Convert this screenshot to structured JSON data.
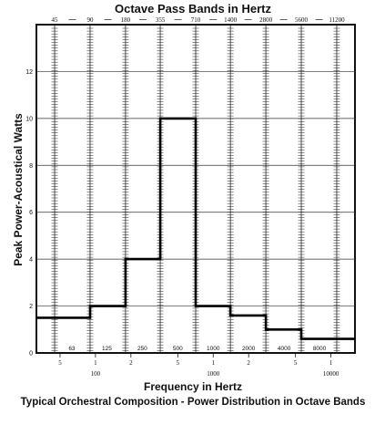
{
  "chart_data": {
    "type": "line",
    "title": "Octave Pass Bands in Hertz",
    "ylabel": "Peak Power-Acoustical Watts",
    "xlabel": "Frequency in Hertz",
    "caption": "Typical Orchestral Composition - Power Distribution in Octave Bands",
    "x_scale": "log",
    "xlim": [
      31.5,
      16000
    ],
    "ylim": [
      0,
      14
    ],
    "grid": true,
    "band_edges": [
      "45",
      "90",
      "180",
      "355",
      "710",
      "1400",
      "2800",
      "5600",
      "11200"
    ],
    "band_edge_values": [
      45,
      90,
      180,
      355,
      710,
      1400,
      2800,
      5600,
      11200
    ],
    "band_centers": [
      "63",
      "125",
      "250",
      "500",
      "1000",
      "2000",
      "4000",
      "8000"
    ],
    "band_center_values": [
      63,
      125,
      250,
      500,
      1000,
      2000,
      4000,
      8000
    ],
    "y_ticks": [
      "0",
      "2",
      "4",
      "6",
      "8",
      "10",
      "12"
    ],
    "y_tick_values": [
      0,
      2,
      4,
      6,
      8,
      10,
      12
    ],
    "x_ticks": [
      {
        "label": "5",
        "value": 50
      },
      {
        "label": "1",
        "value": 100
      },
      {
        "label": "2",
        "value": 200
      },
      {
        "label": "5",
        "value": 500
      },
      {
        "label": "1",
        "value": 1000
      },
      {
        "label": "2",
        "value": 2000
      },
      {
        "label": "5",
        "value": 5000
      },
      {
        "label": "1",
        "value": 10000
      }
    ],
    "x_decade_labels": [
      {
        "label": "100",
        "value": 100
      },
      {
        "label": "1000",
        "value": 1000
      },
      {
        "label": "10000",
        "value": 10000
      }
    ],
    "series": [
      {
        "values": [
          {
            "x0": 31.5,
            "x1": 90,
            "y": 1.5
          },
          {
            "x0": 90,
            "x1": 180,
            "y": 2.0
          },
          {
            "x0": 180,
            "x1": 355,
            "y": 4.0
          },
          {
            "x0": 355,
            "x1": 710,
            "y": 10.0
          },
          {
            "x0": 710,
            "x1": 1400,
            "y": 2.0
          },
          {
            "x0": 1400,
            "x1": 2800,
            "y": 1.6
          },
          {
            "x0": 2800,
            "x1": 5600,
            "y": 1.0
          },
          {
            "x0": 5600,
            "x1": 16000,
            "y": 0.6
          }
        ]
      }
    ]
  }
}
